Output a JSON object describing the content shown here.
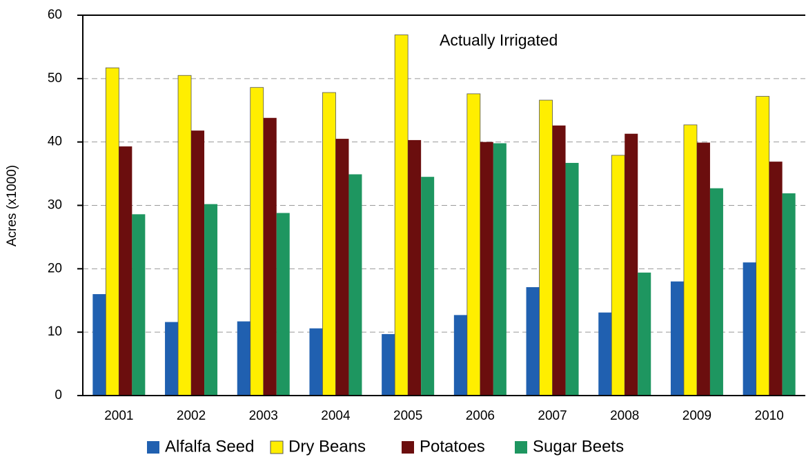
{
  "chart_data": {
    "type": "bar",
    "annotation": "Actually Irrigated",
    "y_label": "Acres (x1000)",
    "categories": [
      "2001",
      "2002",
      "2003",
      "2004",
      "2005",
      "2006",
      "2007",
      "2008",
      "2009",
      "2010"
    ],
    "series": [
      {
        "name": "Alfalfa Seed",
        "color": "#2060b0",
        "values": [
          16.0,
          11.6,
          11.7,
          10.6,
          9.7,
          12.7,
          17.1,
          13.1,
          18.0,
          21.0
        ]
      },
      {
        "name": "Dry Beans",
        "color": "#ffee00",
        "values": [
          51.7,
          50.5,
          48.6,
          47.8,
          56.9,
          47.6,
          46.6,
          37.9,
          42.7,
          47.2
        ]
      },
      {
        "name": "Potatoes",
        "color": "#6b0e0e",
        "values": [
          39.3,
          41.8,
          43.8,
          40.5,
          40.3,
          40.0,
          42.6,
          41.3,
          39.9,
          36.9
        ]
      },
      {
        "name": "Sugar Beets",
        "color": "#1e9660",
        "values": [
          28.6,
          30.2,
          28.8,
          34.9,
          34.5,
          39.8,
          36.7,
          19.4,
          32.7,
          31.9
        ]
      }
    ],
    "ylim": [
      0,
      60
    ],
    "yticks": [
      0,
      10,
      20,
      30,
      40,
      50,
      60
    ],
    "grid": true,
    "legend": "bottom"
  }
}
